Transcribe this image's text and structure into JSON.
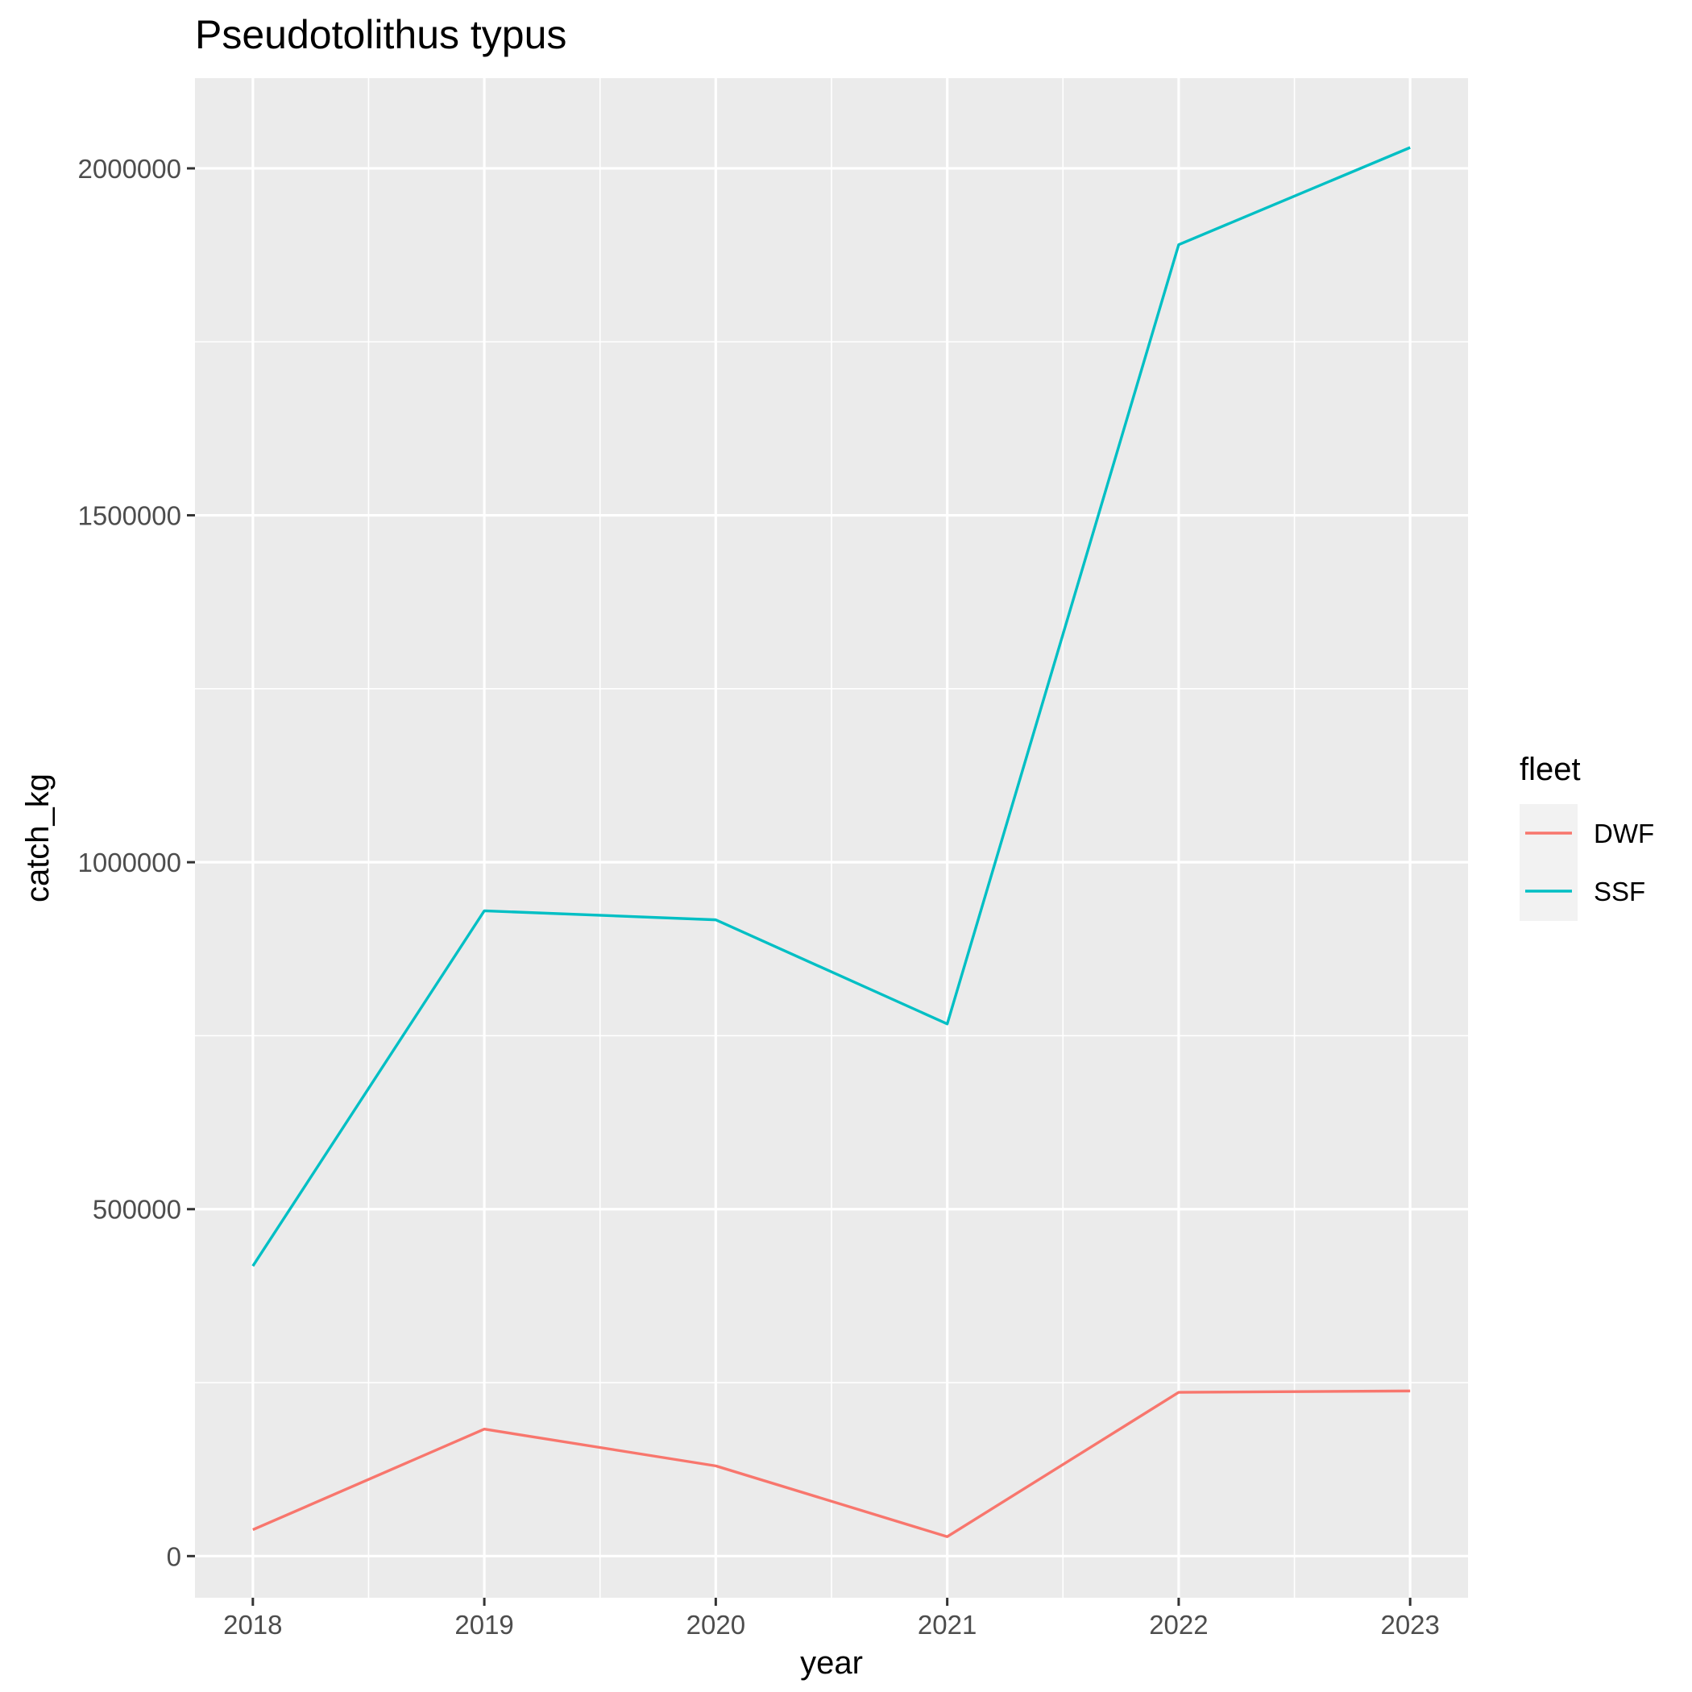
{
  "chart_data": {
    "type": "line",
    "title": "Pseudotolithus typus",
    "xlabel": "year",
    "ylabel": "catch_kg",
    "x": [
      2018,
      2019,
      2020,
      2021,
      2022,
      2023
    ],
    "x_ticks": [
      "2018",
      "2019",
      "2020",
      "2021",
      "2022",
      "2023"
    ],
    "y_ticks": [
      0,
      500000,
      1000000,
      1500000,
      2000000
    ],
    "y_tick_labels": [
      "0",
      "500000",
      "1000000",
      "1500000",
      "2000000"
    ],
    "xlim": [
      2017.75,
      2023.25
    ],
    "ylim": [
      -60000,
      2130000
    ],
    "grid": true,
    "legend": {
      "title": "fleet",
      "position": "right"
    },
    "series": [
      {
        "name": "DWF",
        "color": "#F8766D",
        "values": [
          38000,
          183000,
          130000,
          28000,
          236000,
          238000
        ]
      },
      {
        "name": "SSF",
        "color": "#00BFC4",
        "values": [
          418000,
          930000,
          917000,
          767000,
          1890000,
          2030000
        ]
      }
    ]
  }
}
